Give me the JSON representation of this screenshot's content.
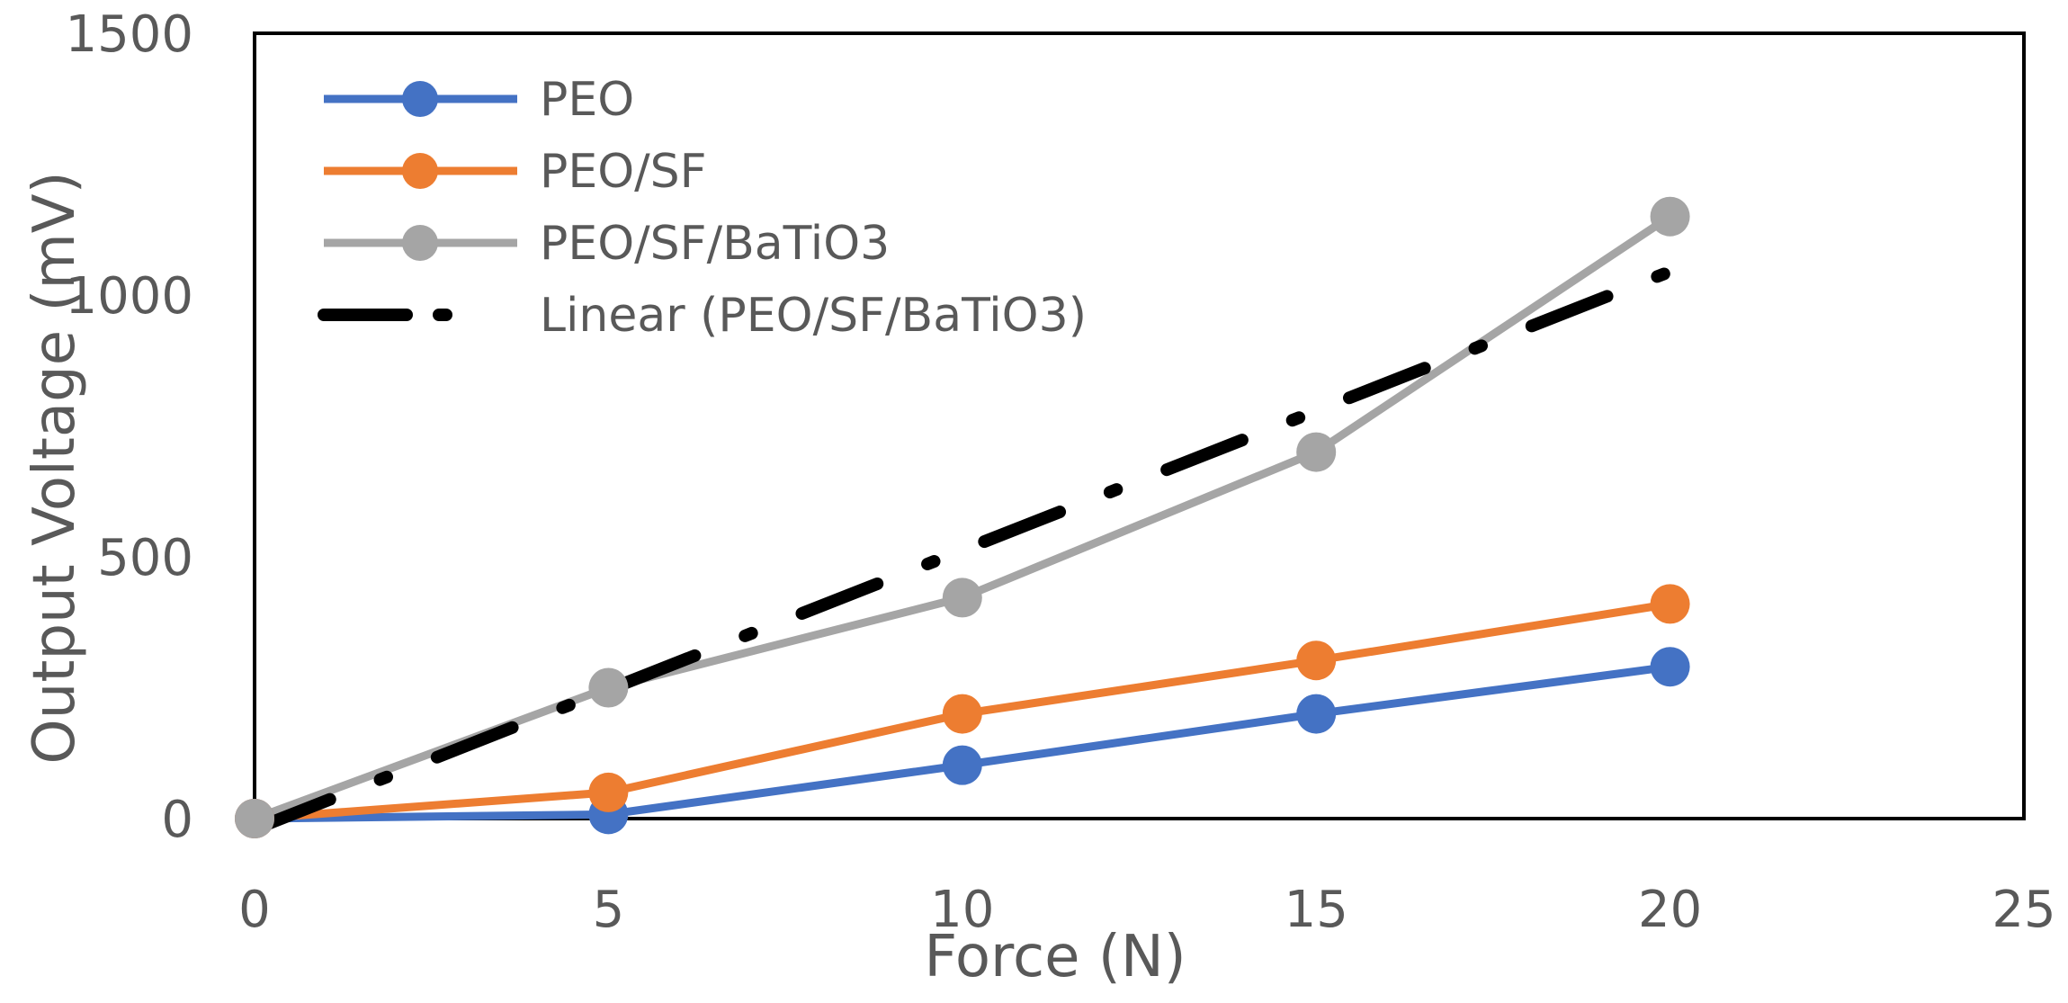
{
  "chart_data": {
    "type": "line",
    "title": "",
    "xlabel": "Force (N)",
    "ylabel": "Output Voltage (mV)",
    "xlim": [
      0,
      25
    ],
    "ylim": [
      0,
      1500
    ],
    "xticks": [
      0,
      5,
      10,
      15,
      20,
      25
    ],
    "yticks": [
      0,
      500,
      1000,
      1500
    ],
    "x": [
      0,
      5,
      10,
      15,
      20
    ],
    "series": [
      {
        "name": "PEO",
        "color": "#4472C4",
        "marker": "circle",
        "values": [
          0,
          8,
          102,
          200,
          290
        ]
      },
      {
        "name": "PEO/SF",
        "color": "#ED7D31",
        "marker": "circle",
        "values": [
          0,
          50,
          200,
          302,
          410
        ]
      },
      {
        "name": "PEO/SF/BaTiO3",
        "color": "#A5A5A5",
        "marker": "circle",
        "values": [
          0,
          250,
          422,
          700,
          1150
        ]
      }
    ],
    "trendline": {
      "name": "Linear (PEO/SF/BaTiO3)",
      "of_series": "PEO/SF/BaTiO3",
      "color": "#000000",
      "style": "dash-dot",
      "x_range": [
        0,
        20
      ],
      "y_range": [
        -20,
        1045
      ]
    },
    "legend_position": "top-left",
    "grid": false
  }
}
